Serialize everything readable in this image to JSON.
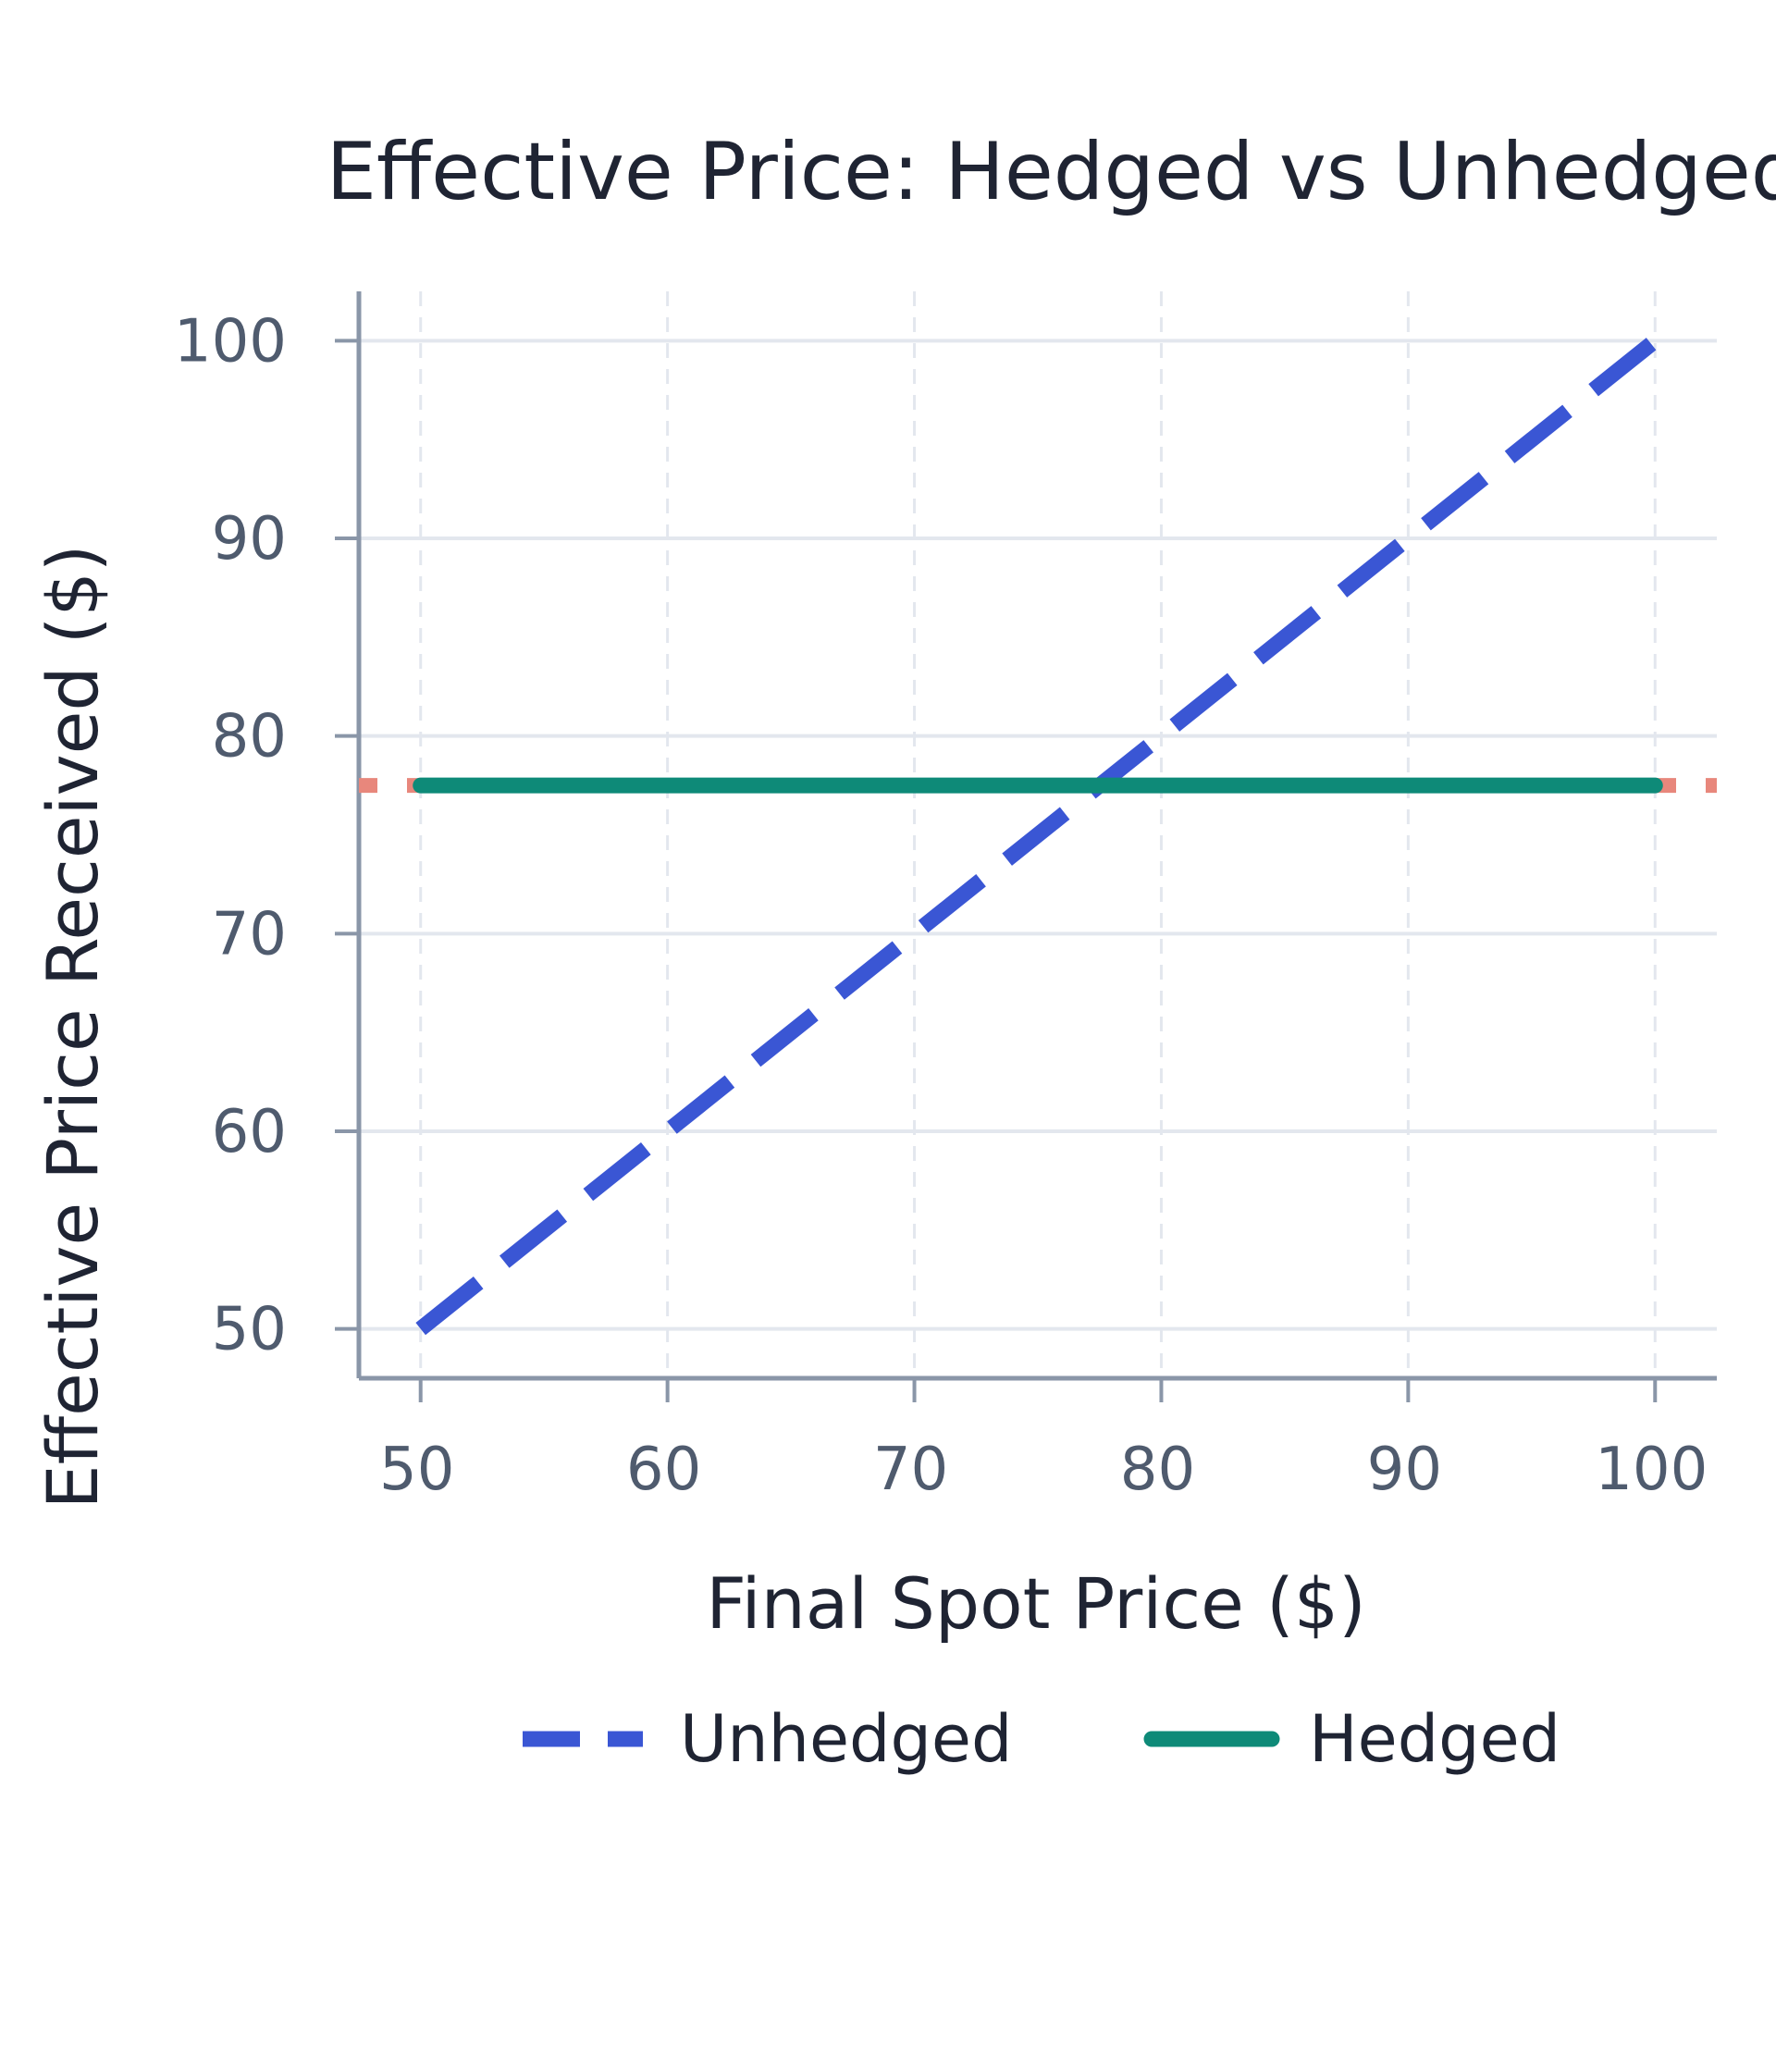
{
  "chart_data": {
    "type": "line",
    "title": "Effective Price: Hedged vs Unhedged",
    "xlabel": "Final Spot Price ($)",
    "ylabel": "Effective Price Received ($)",
    "xlim": [
      47.5,
      102.5
    ],
    "ylim": [
      47.5,
      102.5
    ],
    "xticks": [
      50,
      60,
      70,
      80,
      90,
      100
    ],
    "yticks": [
      50,
      60,
      70,
      80,
      90,
      100
    ],
    "grid": true,
    "legend_position": "bottom",
    "series": [
      {
        "name": "Unhedged",
        "style": "dashed",
        "color": "#3a56d4",
        "x": [
          50,
          60,
          70,
          80,
          90,
          100
        ],
        "y": [
          50,
          60,
          70,
          80,
          90,
          100
        ]
      },
      {
        "name": "Hedged",
        "style": "solid",
        "color": "#0e8a78",
        "x": [
          50,
          100
        ],
        "y": [
          77.5,
          77.5
        ]
      }
    ],
    "reference_lines": [
      {
        "orientation": "horizontal",
        "y": 77.5,
        "style": "dotted",
        "color": "#e8877c"
      }
    ],
    "colors": {
      "grid": "#e3e7ee",
      "axis": "#8a96a8"
    }
  }
}
